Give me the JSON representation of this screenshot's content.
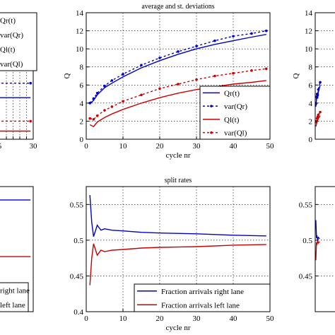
{
  "chart_data": [
    {
      "type": "line",
      "title": "",
      "xlabel": "",
      "ylabel": "",
      "xlim": [
        0,
        30
      ],
      "ylim": [
        0,
        14
      ],
      "xticks": [
        5,
        10,
        15,
        20,
        25,
        30
      ],
      "xtick_labels": [
        "5",
        "",
        "",
        "",
        "",
        "30"
      ],
      "yticks": [],
      "legend_entries": [
        "Qr(t)",
        "var(Qr)",
        "Ql(t)",
        "var(Ql)"
      ],
      "series": [
        {
          "name": "Qr(t)",
          "color": "#0000cc",
          "dash": "",
          "x": [
            0,
            28
          ],
          "y": [
            4.6,
            4.6
          ]
        },
        {
          "name": "var(Qr)",
          "color": "#0000cc",
          "dash": "3 3",
          "markers": true,
          "x": [
            0,
            28
          ],
          "y": [
            6.2,
            6.2
          ]
        },
        {
          "name": "Ql(t)",
          "color": "#cc0000",
          "dash": "",
          "x": [
            0,
            28
          ],
          "y": [
            0.9,
            0.9
          ]
        },
        {
          "name": "var(Ql)",
          "color": "#cc0000",
          "dash": "3 3",
          "markers": true,
          "x": [
            0,
            28
          ],
          "y": [
            2.0,
            2.0
          ]
        }
      ]
    },
    {
      "type": "line",
      "title": "average and st. deviations",
      "xlabel": "cycle nr",
      "ylabel": "Q",
      "xlim": [
        0,
        50
      ],
      "ylim": [
        0,
        14
      ],
      "xticks": [
        0,
        10,
        20,
        30,
        40,
        50
      ],
      "xtick_labels": [
        "0",
        "10",
        "20",
        "30",
        "40",
        "50"
      ],
      "yticks": [
        0,
        2,
        4,
        6,
        8,
        10,
        12,
        14
      ],
      "ytick_labels": [
        "0",
        "2",
        "4",
        "6",
        "8",
        "10",
        "12",
        "14"
      ],
      "legend_entries": [
        "Qr(t)",
        "var(Qr)",
        "Ql(t)",
        "var(Ql)"
      ],
      "series": [
        {
          "name": "Qr(t)",
          "color": "#0000cc",
          "dash": "",
          "x": [
            1,
            2,
            3,
            5,
            7,
            10,
            15,
            20,
            25,
            30,
            35,
            40,
            45,
            49
          ],
          "y": [
            3.9,
            4.3,
            4.9,
            5.7,
            6.2,
            6.9,
            7.9,
            8.7,
            9.4,
            10.0,
            10.5,
            10.9,
            11.3,
            11.6
          ]
        },
        {
          "name": "var(Qr)",
          "color": "#0000cc",
          "dash": "3 3",
          "markers": true,
          "x": [
            1,
            2,
            3,
            5,
            7,
            10,
            15,
            20,
            25,
            30,
            35,
            40,
            45,
            49
          ],
          "y": [
            4.0,
            4.5,
            5.1,
            5.9,
            6.5,
            7.2,
            8.2,
            9.0,
            9.7,
            10.3,
            10.9,
            11.4,
            11.7,
            12.0
          ]
        },
        {
          "name": "Ql(t)",
          "color": "#cc0000",
          "dash": "",
          "x": [
            1,
            2,
            3,
            5,
            7,
            10,
            15,
            20,
            25,
            30,
            35,
            40,
            45,
            49
          ],
          "y": [
            1.6,
            1.4,
            1.9,
            2.4,
            2.8,
            3.3,
            4.0,
            4.6,
            5.1,
            5.5,
            5.8,
            6.1,
            6.3,
            6.5
          ]
        },
        {
          "name": "var(Ql)",
          "color": "#cc0000",
          "dash": "3 3",
          "markers": true,
          "x": [
            1,
            2,
            3,
            5,
            7,
            10,
            15,
            20,
            25,
            30,
            35,
            40,
            45,
            49
          ],
          "y": [
            2.3,
            2.2,
            2.6,
            3.2,
            3.6,
            4.2,
            4.9,
            5.6,
            6.1,
            6.6,
            7.0,
            7.3,
            7.6,
            7.8
          ]
        }
      ]
    },
    {
      "type": "line",
      "title": "",
      "xlabel": "",
      "ylabel": "Q",
      "xlim": [
        0,
        50
      ],
      "ylim": [
        0,
        14
      ],
      "xticks": [],
      "yticks": [
        0,
        2,
        4,
        6,
        8,
        10,
        12,
        14
      ],
      "ytick_labels": [
        "0",
        "2",
        "4",
        "6",
        "8",
        "10",
        "12",
        "14"
      ],
      "legend_entries": [],
      "series": [
        {
          "name": "Qr(t)",
          "color": "#0000cc",
          "dash": "",
          "x": [
            1,
            2,
            3,
            4,
            5,
            8
          ],
          "y": [
            3.6,
            4.4,
            4.8,
            4.5,
            5.2,
            6.0
          ]
        },
        {
          "name": "var(Qr)",
          "color": "#0000cc",
          "dash": "3 3",
          "markers": true,
          "x": [
            1,
            2,
            3,
            4,
            5,
            8
          ],
          "y": [
            3.9,
            4.7,
            5.0,
            4.9,
            5.5,
            6.3
          ]
        },
        {
          "name": "Ql(t)",
          "color": "#cc0000",
          "dash": "",
          "x": [
            1,
            2,
            3,
            4,
            5,
            8
          ],
          "y": [
            1.4,
            1.7,
            1.9,
            2.1,
            2.3,
            2.6
          ]
        },
        {
          "name": "var(Ql)",
          "color": "#cc0000",
          "dash": "3 3",
          "markers": true,
          "x": [
            1,
            2,
            3,
            4,
            5,
            8
          ],
          "y": [
            1.9,
            2.0,
            2.3,
            2.5,
            2.7,
            3.0
          ]
        }
      ]
    },
    {
      "type": "line",
      "title": "",
      "xlabel": "",
      "ylabel": "",
      "xlim": [
        0,
        30
      ],
      "ylim": [
        0.4,
        0.55
      ],
      "xticks": [],
      "yticks": [],
      "legend_entries": [
        "right lane",
        "left lane"
      ],
      "series": [
        {
          "name": "right lane",
          "color": "#0000cc",
          "dash": "",
          "x": [
            0,
            28
          ],
          "y": [
            0.534,
            0.534
          ]
        },
        {
          "name": "left lane",
          "color": "#cc0000",
          "dash": "",
          "x": [
            0,
            28
          ],
          "y": [
            0.466,
            0.466
          ]
        }
      ]
    },
    {
      "type": "line",
      "title": "split rates",
      "xlabel": "cycle nr",
      "ylabel": "",
      "xlim": [
        0,
        50
      ],
      "ylim": [
        0.4,
        0.575
      ],
      "xticks": [
        0,
        10,
        20,
        30,
        40,
        50
      ],
      "xtick_labels": [
        "0",
        "10",
        "20",
        "30",
        "40",
        "50"
      ],
      "yticks": [
        0.4,
        0.45,
        0.5,
        0.55
      ],
      "ytick_labels": [
        "0.4",
        "0.45",
        "0.5",
        "0.55"
      ],
      "legend_entries": [
        "Fraction arrivals right lane",
        "Fraction arrivals left lane"
      ],
      "series": [
        {
          "name": "Fraction arrivals right lane",
          "color": "#0000cc",
          "dash": "",
          "x": [
            1,
            1.5,
            2,
            3,
            4,
            5,
            7,
            10,
            15,
            20,
            30,
            40,
            49
          ],
          "y": [
            0.563,
            0.525,
            0.505,
            0.521,
            0.514,
            0.516,
            0.514,
            0.513,
            0.511,
            0.51,
            0.509,
            0.507,
            0.506
          ]
        },
        {
          "name": "Fraction arrivals left lane",
          "color": "#cc0000",
          "dash": "",
          "x": [
            1,
            1.5,
            2,
            3,
            4,
            5,
            7,
            10,
            15,
            20,
            30,
            40,
            49
          ],
          "y": [
            0.437,
            0.475,
            0.495,
            0.479,
            0.486,
            0.484,
            0.486,
            0.487,
            0.489,
            0.49,
            0.491,
            0.493,
            0.494
          ]
        }
      ]
    },
    {
      "type": "line",
      "title": "",
      "xlabel": "",
      "ylabel": "",
      "xlim": [
        0,
        50
      ],
      "ylim": [
        0.4,
        0.575
      ],
      "xticks": [],
      "yticks": [
        0.45,
        0.5,
        0.55
      ],
      "ytick_labels": [
        "0.45",
        "0.5",
        "0.55"
      ],
      "legend_entries": [],
      "series": [
        {
          "name": "right",
          "color": "#0000cc",
          "dash": "",
          "x": [
            1,
            2,
            3,
            4,
            5,
            7
          ],
          "y": [
            0.528,
            0.503,
            0.505,
            0.5,
            0.504,
            0.502
          ]
        },
        {
          "name": "left",
          "color": "#cc0000",
          "dash": "",
          "x": [
            1,
            2,
            3,
            4,
            5,
            7
          ],
          "y": [
            0.472,
            0.497,
            0.495,
            0.5,
            0.496,
            0.498
          ]
        }
      ]
    }
  ]
}
